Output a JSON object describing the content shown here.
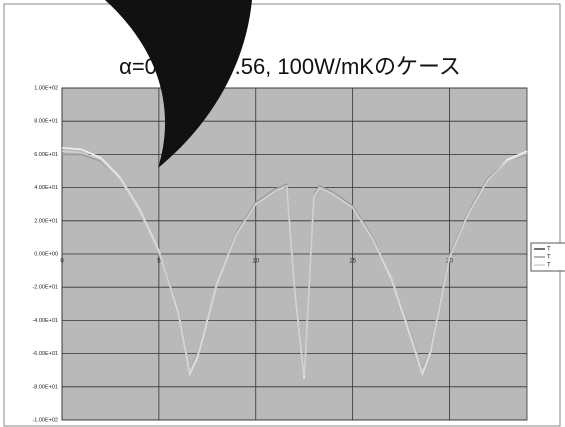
{
  "chart_data": {
    "type": "line",
    "title": "α=0.81, ε=0.56, 100W/mKのケース",
    "x": [
      0,
      1,
      2,
      3,
      4,
      5,
      6,
      6.6,
      7,
      8,
      9,
      10,
      11,
      11.6,
      12,
      12.5,
      13,
      13.3,
      14,
      15,
      16,
      17,
      18,
      18.6,
      19,
      20,
      21,
      22,
      23,
      24
    ],
    "series": [
      {
        "name": "T",
        "color": "#f2f2f2",
        "values": [
          64,
          63,
          58,
          46,
          27,
          2,
          -35,
          -72,
          -62,
          -18,
          12,
          30,
          38,
          41,
          -20,
          -75,
          35,
          40,
          36,
          28,
          10,
          -15,
          -50,
          -72,
          -60,
          -2,
          25,
          45,
          57,
          62
        ]
      },
      {
        "name": "T",
        "color": "#9a9a9a",
        "values": [
          60,
          60,
          56,
          45,
          26,
          1,
          -33,
          -70,
          -60,
          -17,
          13,
          31,
          39,
          42,
          -18,
          -73,
          36,
          41,
          37,
          29,
          11,
          -14,
          -48,
          -70,
          -58,
          -1,
          26,
          46,
          56,
          60
        ]
      },
      {
        "name": "T",
        "color": "#d0d0d0",
        "values": [
          62,
          61,
          57,
          45,
          26,
          1,
          -34,
          -71,
          -61,
          -17,
          12,
          30,
          38,
          41,
          -19,
          -74,
          35,
          40,
          36,
          28,
          10,
          -14,
          -49,
          -71,
          -59,
          -2,
          25,
          45,
          56,
          61
        ]
      }
    ],
    "xlim": [
      0,
      24
    ],
    "xticks": [
      0,
      5,
      10,
      15,
      20
    ],
    "ylim": [
      -100,
      100
    ],
    "yticks": [
      {
        "value": -100,
        "label": "-1.00E+02"
      },
      {
        "value": -80,
        "label": "-8.00E+01"
      },
      {
        "value": -60,
        "label": "-6.00E+01"
      },
      {
        "value": -40,
        "label": "-4.00E+01"
      },
      {
        "value": -20,
        "label": "-2.00E+01"
      },
      {
        "value": 0,
        "label": "0.00E+00"
      },
      {
        "value": 20,
        "label": "2.00E+01"
      },
      {
        "value": 40,
        "label": "4.00E+01"
      },
      {
        "value": 60,
        "label": "6.00E+01"
      },
      {
        "value": 80,
        "label": "8.00E+01"
      },
      {
        "value": 100,
        "label": "1.00E+02"
      }
    ],
    "grid": true,
    "legend": "right"
  }
}
